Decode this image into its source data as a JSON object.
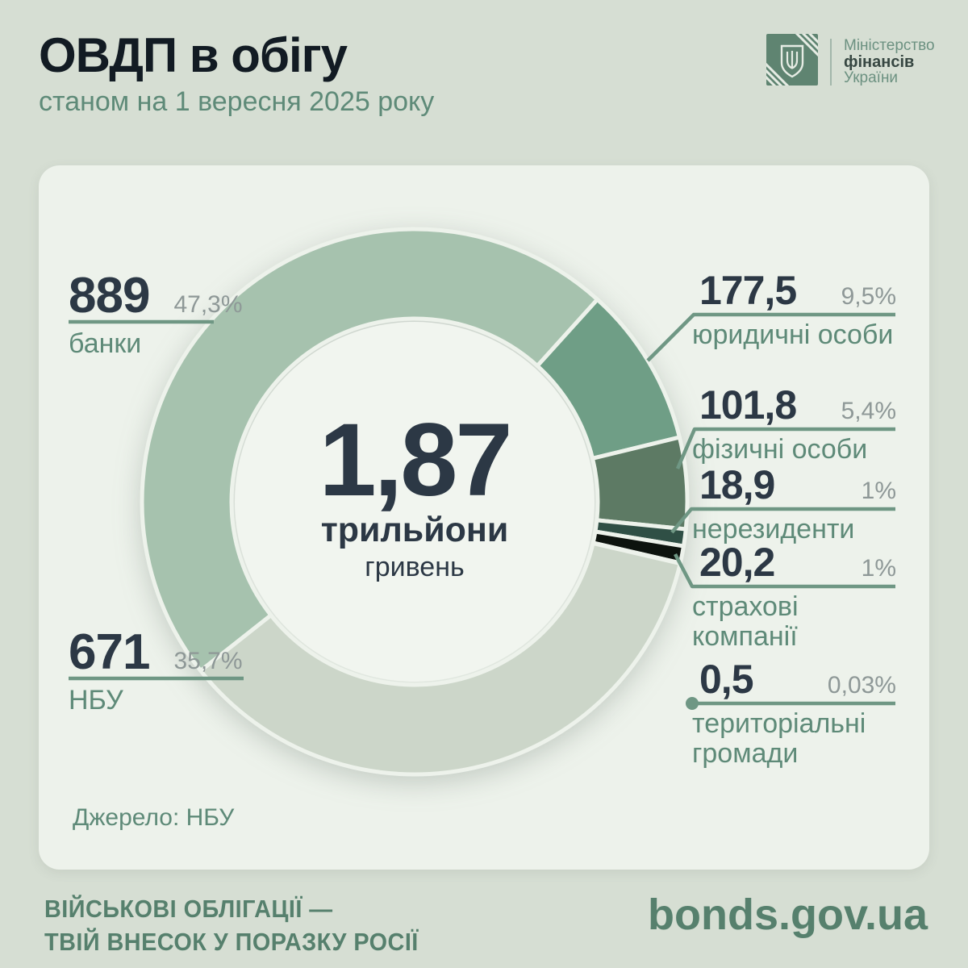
{
  "header": {
    "title": "ОВДП в обігу",
    "subtitle": "станом на 1 вересня 2025 року",
    "logo": {
      "line1": "Міністерство",
      "line2": "фінансів",
      "line3": "України"
    }
  },
  "center": {
    "value": "1,87",
    "unit_bold": "трильйони",
    "unit": "гривень"
  },
  "source": "Джерело: НБУ",
  "footer": {
    "slogan_line1": "ВІЙСЬКОВІ ОБЛІГАЦІЇ —",
    "slogan_line2": "ТВІЙ ВНЕСОК У ПОРАЗКУ РОСІЇ",
    "site": "bonds.gov.ua"
  },
  "colors": {
    "page_bg": "#d6ded3",
    "card_bg": "#edf2eb",
    "dark_navy": "#2c3845",
    "title_dark": "#121b23",
    "green_text": "#5e8a78",
    "pct_gray": "#8e9897",
    "leader_line": "#6f9784",
    "footer_green": "#56806d",
    "logo_green": "#5f8471"
  },
  "chart_data": {
    "type": "pie",
    "subtype": "donut",
    "title": "ОВДП в обігу станом на 1 вересня 2025 року",
    "center_total": "1,87 трильйони гривень",
    "start_angle_deg": -128.3,
    "legend_position": "around",
    "segments": [
      {
        "key": "banks",
        "label": "банки",
        "value": 889,
        "value_label": "889",
        "pct": 47.3,
        "pct_label": "47,3%",
        "color": "#a6c2ae"
      },
      {
        "key": "legal-entities",
        "label": "юридичні особи",
        "value": 177.5,
        "value_label": "177,5",
        "pct": 9.5,
        "pct_label": "9,5%",
        "color": "#6f9e86"
      },
      {
        "key": "individuals",
        "label": "фізичні особи",
        "value": 101.8,
        "value_label": "101,8",
        "pct": 5.4,
        "pct_label": "5,4%",
        "color": "#5d7a64"
      },
      {
        "key": "non-residents",
        "label": "нерезиденти",
        "value": 18.9,
        "value_label": "18,9",
        "pct": 1,
        "pct_label": "1%",
        "color": "#2f4f45"
      },
      {
        "key": "insurance-companies",
        "label": "страхові компанії",
        "value": 20.2,
        "value_label": "20,2",
        "pct": 1,
        "pct_label": "1%",
        "color": "#0d130e"
      },
      {
        "key": "territorial-communities",
        "label": "територіальні громади",
        "value": 0.5,
        "value_label": "0,5",
        "pct": 0.03,
        "pct_label": "0,03%",
        "color": "#9fb5a8"
      },
      {
        "key": "nbu",
        "label": "НБУ",
        "value": 671,
        "value_label": "671",
        "pct": 35.7,
        "pct_label": "35,7%",
        "color": "#ccd6c9"
      }
    ]
  }
}
